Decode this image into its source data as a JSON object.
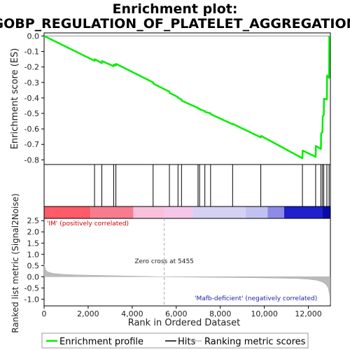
{
  "chart_data": {
    "type": "line",
    "title": "Enrichment plot:",
    "subtitle": "GOBP_REGULATION_OF_PLATELET_AGGREGATION",
    "es_panel": {
      "ylabel": "Enrichment score (ES)",
      "ylim": [
        -0.83,
        0.02
      ],
      "yticks": [
        "0.0",
        "-0.1",
        "-0.2",
        "-0.3",
        "-0.4",
        "-0.5",
        "-0.6",
        "-0.7",
        "-0.8"
      ],
      "ytick_values": [
        0.0,
        -0.1,
        -0.2,
        -0.3,
        -0.4,
        -0.5,
        -0.6,
        -0.7,
        -0.8
      ],
      "series": [
        {
          "name": "Enrichment profile",
          "color": "#00ee00",
          "x": [
            0,
            2290,
            2300,
            2620,
            2630,
            3160,
            3170,
            3260,
            3270,
            4950,
            4960,
            5690,
            5700,
            6080,
            6090,
            6240,
            6250,
            6990,
            7000,
            7060,
            7070,
            7300,
            7310,
            7560,
            7570,
            8560,
            8570,
            9840,
            9850,
            11730,
            11740,
            12330,
            12340,
            12570,
            12580,
            12640,
            12650,
            12700,
            12710,
            12840,
            12850,
            12940,
            12950
          ],
          "y": [
            0.0,
            -0.16,
            -0.15,
            -0.175,
            -0.162,
            -0.195,
            -0.185,
            -0.19,
            -0.18,
            -0.3,
            -0.308,
            -0.36,
            -0.368,
            -0.395,
            -0.4,
            -0.41,
            -0.418,
            -0.465,
            -0.468,
            -0.47,
            -0.474,
            -0.485,
            -0.49,
            -0.5,
            -0.505,
            -0.57,
            -0.568,
            -0.655,
            -0.645,
            -0.79,
            -0.74,
            -0.78,
            -0.71,
            -0.73,
            -0.63,
            -0.62,
            -0.52,
            -0.51,
            -0.405,
            -0.41,
            -0.255,
            -0.27,
            0.0
          ]
        }
      ]
    },
    "hits_panel": {
      "hit_positions": [
        2290,
        2620,
        3160,
        3260,
        4950,
        5690,
        6080,
        6240,
        6990,
        7060,
        7300,
        7560,
        8560,
        9840,
        11730,
        12330,
        12570,
        12640,
        12700,
        12840,
        12940
      ]
    },
    "colorbar": {
      "segments": [
        {
          "start": 0,
          "end": 2100,
          "color": "#ff5a67"
        },
        {
          "start": 2100,
          "end": 4050,
          "color": "#f77c8e"
        },
        {
          "start": 4050,
          "end": 5450,
          "color": "#f9c0dc"
        },
        {
          "start": 5450,
          "end": 6750,
          "color": "#f6c6ea"
        },
        {
          "start": 6750,
          "end": 9150,
          "color": "#d4d1f5"
        },
        {
          "start": 9150,
          "end": 10150,
          "color": "#c2c2f2"
        },
        {
          "start": 10150,
          "end": 10900,
          "color": "#8c8ce8"
        },
        {
          "start": 10900,
          "end": 12650,
          "color": "#2020cc"
        },
        {
          "start": 12650,
          "end": 12990,
          "color": "#0a0aa8"
        }
      ]
    },
    "metric_panel": {
      "ylabel": "Ranked list metric (Signal2Noise)",
      "ylim": [
        -1.3,
        2.6
      ],
      "yticks": [
        "2.5",
        "2.0",
        "1.5",
        "1.0",
        "0.5",
        "0.0",
        "-0.5",
        "-1.0"
      ],
      "ytick_values": [
        2.5,
        2.0,
        1.5,
        1.0,
        0.5,
        0.0,
        -0.5,
        -1.0
      ],
      "fill_color": "#bbbbbb",
      "x": [
        0,
        60,
        150,
        400,
        800,
        1500,
        2500,
        4000,
        5455,
        7000,
        9000,
        10500,
        11500,
        12000,
        12400,
        12650,
        12800,
        12900,
        12960,
        12990
      ],
      "y": [
        0.55,
        0.33,
        0.22,
        0.15,
        0.11,
        0.08,
        0.06,
        0.03,
        0.0,
        -0.02,
        -0.04,
        -0.06,
        -0.08,
        -0.11,
        -0.16,
        -0.24,
        -0.35,
        -0.5,
        -0.8,
        -1.2
      ],
      "label_pos": "'IM' (positively correlated)",
      "label_neg": "'Mafb-deficient' (negatively correlated)",
      "zero_cross": "Zero cross at 5455",
      "zero_cross_value": 5455
    },
    "xlabel": "Rank in Ordered Dataset",
    "xlim": [
      0,
      13000
    ],
    "xticks": [
      "0",
      "2,000",
      "4,000",
      "6,000",
      "8,000",
      "10,000",
      "12,000"
    ],
    "xtick_values": [
      0,
      2000,
      4000,
      6000,
      8000,
      10000,
      12000
    ],
    "legend": {
      "placement": "bottom",
      "items": [
        {
          "label": "Enrichment profile",
          "color": "#00ee00"
        },
        {
          "label": "Hits",
          "color": "#000000"
        },
        {
          "label": "Ranking metric scores",
          "color": "#bbbbbb"
        }
      ]
    }
  }
}
